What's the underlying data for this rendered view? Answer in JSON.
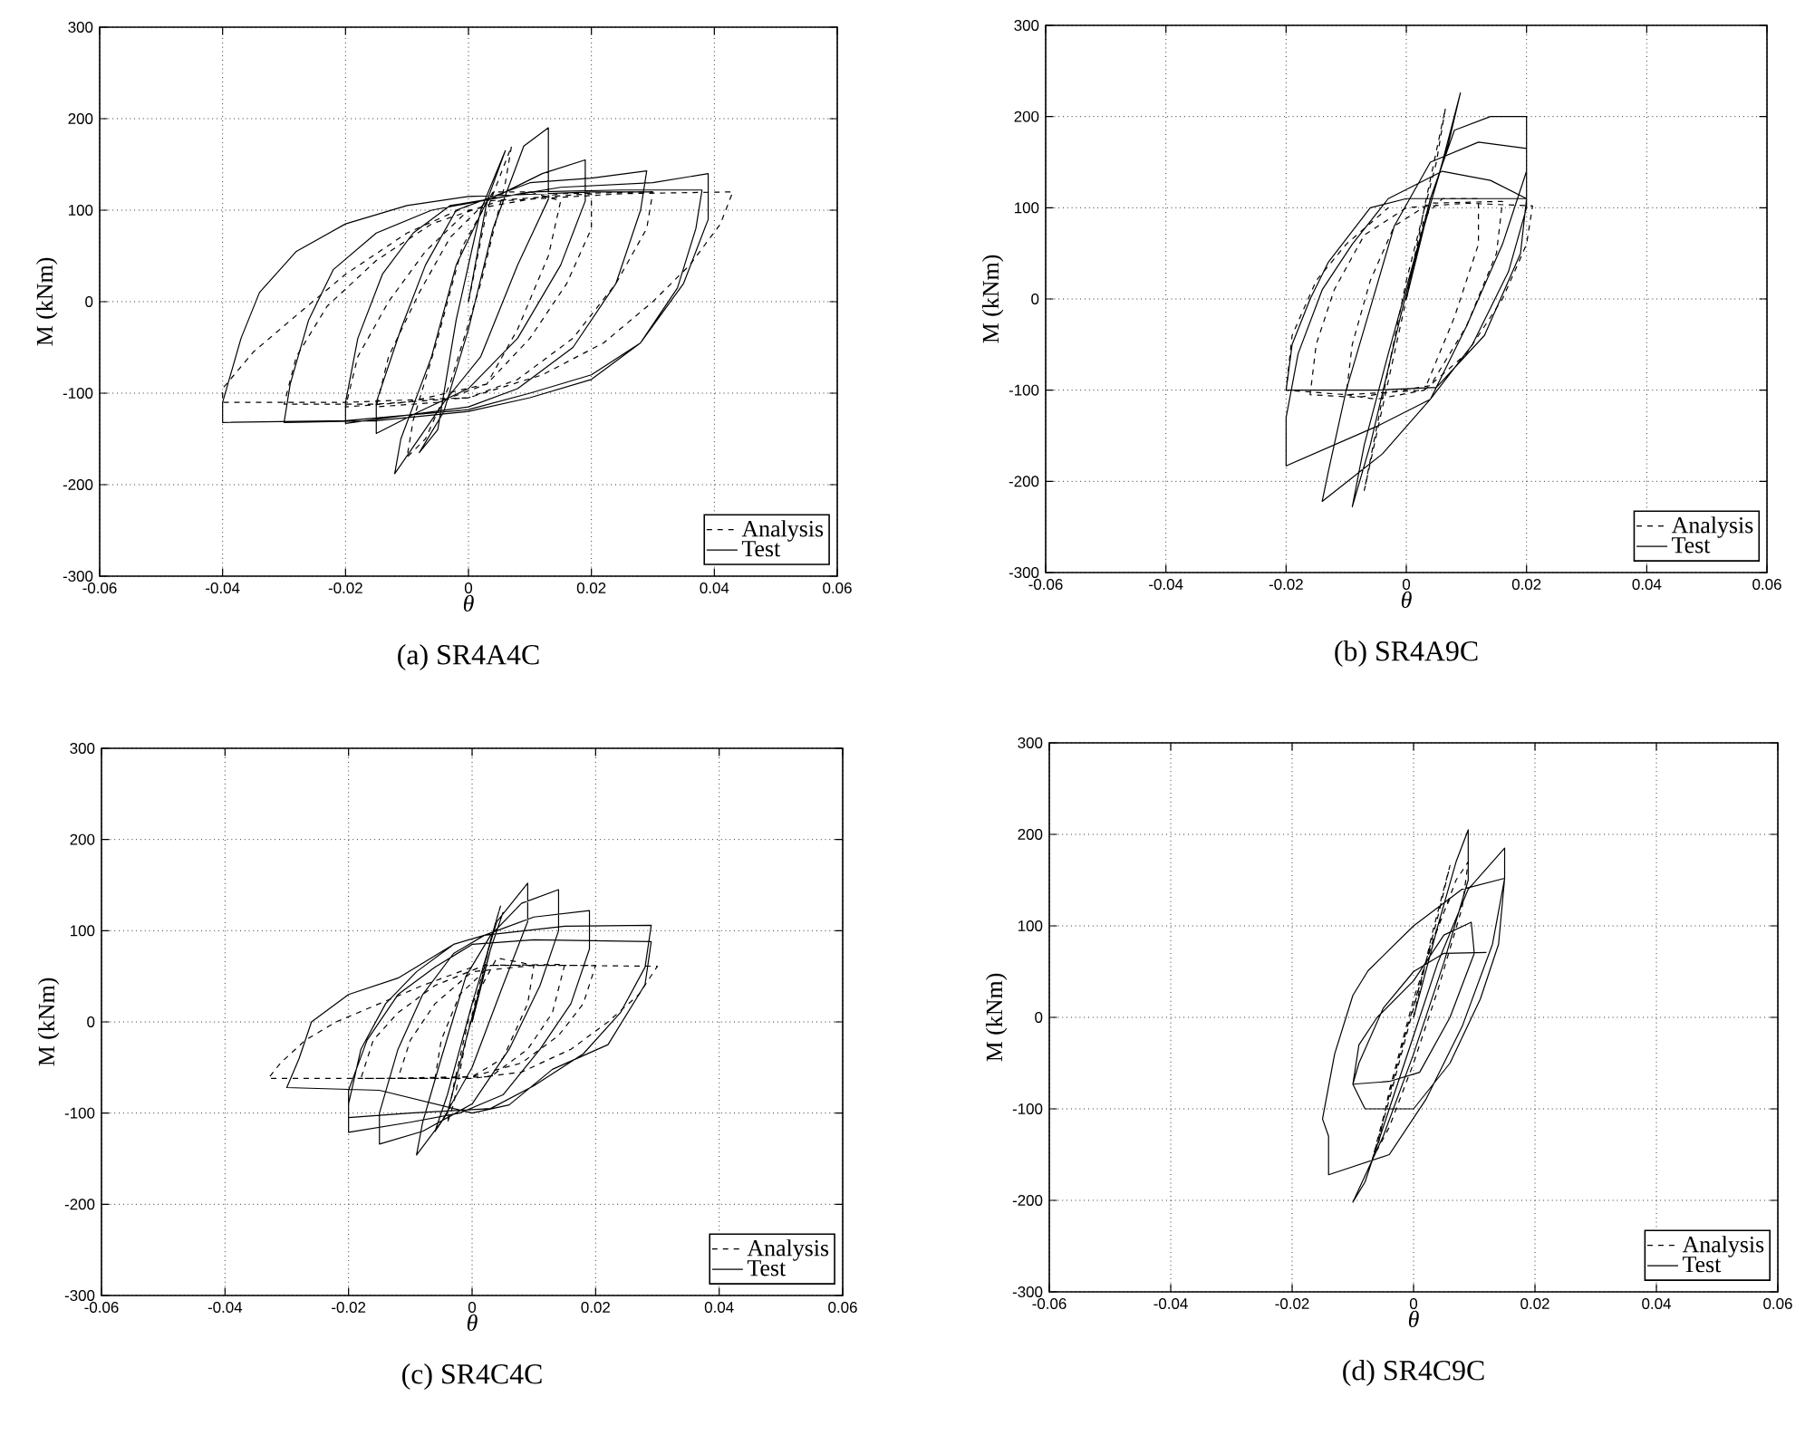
{
  "chart_data": [
    {
      "type": "line",
      "title": "(a) SR4A4C",
      "xlabel": "θ",
      "ylabel": "M (kNm)",
      "xlim": [
        -0.06,
        0.06
      ],
      "ylim": [
        -300,
        300
      ],
      "xticks": [
        -0.06,
        -0.04,
        -0.02,
        0,
        0.02,
        0.04,
        0.06
      ],
      "yticks": [
        -300,
        -200,
        -100,
        0,
        100,
        200,
        300
      ],
      "grid": true,
      "legend": "bottom right",
      "series": [
        {
          "name": "Analysis",
          "color": "#000000",
          "line_style": "dashed",
          "x": [
            0,
            0.003,
            0.007,
            0.006,
            0.002,
            -0.003,
            -0.007,
            -0.01,
            -0.009,
            -0.005,
            -0.001,
            0.004,
            0.01,
            0.015,
            0.013,
            0.008,
            0.003,
            -0.005,
            -0.015,
            -0.013,
            -0.008,
            -0.003,
            0.003,
            0.02,
            0.02,
            0.016,
            0.01,
            0.003,
            -0.01,
            -0.02,
            -0.018,
            -0.013,
            -0.007,
            0,
            0.015,
            0.03,
            0.029,
            0.024,
            0.017,
            0.008,
            0,
            -0.015,
            -0.03,
            -0.028,
            -0.023,
            -0.015,
            -0.006,
            0.005,
            0.025,
            0.043,
            0.041,
            0.036,
            0.03,
            0.022,
            0.012,
            0,
            -0.02,
            -0.04,
            -0.04,
            -0.035,
            -0.028,
            -0.02,
            -0.01,
            0
          ],
          "values": [
            0,
            100,
            170,
            130,
            20,
            -90,
            -150,
            -170,
            -130,
            -40,
            60,
            120,
            120,
            110,
            50,
            -30,
            -90,
            -110,
            -115,
            -60,
            10,
            70,
            110,
            118,
            80,
            20,
            -40,
            -90,
            -110,
            -115,
            -60,
            0,
            55,
            100,
            118,
            120,
            80,
            20,
            -40,
            -85,
            -105,
            -112,
            -112,
            -60,
            -5,
            45,
            85,
            110,
            118,
            120,
            85,
            40,
            0,
            -45,
            -80,
            -105,
            -110,
            -110,
            -95,
            -55,
            -15,
            30,
            75,
            105
          ]
        },
        {
          "name": "Test",
          "color": "#000000",
          "line_style": "solid",
          "x": [
            0,
            0.003,
            0.006,
            0.002,
            -0.002,
            -0.005,
            -0.008,
            -0.004,
            0,
            0.004,
            0.009,
            0.013,
            0.013,
            0.008,
            0.002,
            -0.004,
            -0.012,
            -0.011,
            -0.006,
            -0.002,
            0.003,
            0.012,
            0.019,
            0.019,
            0.015,
            0.008,
            0,
            -0.008,
            -0.015,
            -0.015,
            -0.011,
            -0.007,
            -0.002,
            0.01,
            0.02,
            0.029,
            0.028,
            0.024,
            0.017,
            0.008,
            0,
            -0.02,
            -0.02,
            -0.018,
            -0.014,
            -0.009,
            -0.003,
            0.015,
            0.03,
            0.039,
            0.039,
            0.035,
            0.028,
            0.02,
            0.01,
            0,
            -0.015,
            -0.03,
            -0.029,
            -0.026,
            -0.022,
            -0.015,
            -0.006,
            0.01,
            0.025,
            0.038,
            0.037,
            0.034,
            0.028,
            0.02,
            0.01,
            0,
            -0.02,
            -0.04,
            -0.04,
            -0.037,
            -0.034,
            -0.028,
            -0.02,
            -0.01,
            0,
            0.02,
            0.03
          ],
          "values": [
            0,
            110,
            165,
            100,
            -20,
            -140,
            -165,
            -120,
            -30,
            80,
            170,
            190,
            112,
            40,
            -60,
            -110,
            -188,
            -150,
            -60,
            40,
            110,
            140,
            155,
            110,
            40,
            -40,
            -95,
            -120,
            -144,
            -110,
            -30,
            40,
            100,
            130,
            135,
            143,
            100,
            20,
            -50,
            -95,
            -115,
            -133,
            -110,
            -40,
            30,
            75,
            105,
            125,
            130,
            140,
            90,
            20,
            -45,
            -85,
            -105,
            -120,
            -130,
            -132,
            -90,
            -20,
            35,
            75,
            100,
            120,
            122,
            122,
            80,
            15,
            -45,
            -80,
            -100,
            -118,
            -130,
            -132,
            -110,
            -40,
            10,
            55,
            85,
            105,
            115,
            120,
            120
          ]
        }
      ]
    },
    {
      "type": "line",
      "title": "(b) SR4A9C",
      "xlabel": "θ",
      "ylabel": "M (kNm)",
      "xlim": [
        -0.06,
        0.06
      ],
      "ylim": [
        -300,
        300
      ],
      "xticks": [
        -0.06,
        -0.04,
        -0.02,
        0,
        0.02,
        0.04,
        0.06
      ],
      "yticks": [
        -300,
        -200,
        -100,
        0,
        100,
        200,
        300
      ],
      "grid": true,
      "legend": "bottom right",
      "series": [
        {
          "name": "Analysis",
          "color": "#000000",
          "line_style": "dashed",
          "x": [
            0,
            0.003,
            0.0065,
            0.005,
            0,
            -0.004,
            -0.007,
            -0.005,
            -0.001,
            0.003,
            0.006,
            0.012,
            0.012,
            0.008,
            0.003,
            -0.005,
            -0.01,
            -0.009,
            -0.006,
            -0.002,
            0.004,
            0.016,
            0.015,
            0.01,
            0.004,
            -0.008,
            -0.016,
            -0.015,
            -0.012,
            -0.007,
            0,
            0.01,
            0.021,
            0.02,
            0.016,
            0.01,
            0.003,
            -0.01,
            -0.02,
            -0.019,
            -0.015,
            -0.01,
            -0.003
          ],
          "values": [
            0,
            100,
            209,
            150,
            20,
            -110,
            -210,
            -150,
            -30,
            90,
            110,
            110,
            60,
            -20,
            -100,
            -110,
            -105,
            -50,
            20,
            80,
            105,
            107,
            50,
            -30,
            -95,
            -108,
            -105,
            -50,
            10,
            70,
            100,
            105,
            102,
            60,
            0,
            -60,
            -100,
            -105,
            -100,
            -40,
            20,
            60,
            100
          ]
        },
        {
          "name": "Test",
          "color": "#000000",
          "line_style": "solid",
          "x": [
            0,
            0.003,
            0.006,
            0.009,
            0.007,
            0.002,
            -0.003,
            -0.007,
            -0.009,
            -0.006,
            -0.001,
            0.004,
            0.008,
            0.014,
            0.02,
            0.02,
            0.016,
            0.01,
            0.004,
            -0.004,
            -0.014,
            -0.013,
            -0.01,
            -0.006,
            -0.002,
            0.004,
            0.012,
            0.02,
            0.02,
            0.017,
            0.011,
            0.004,
            -0.005,
            -0.02,
            -0.02,
            -0.018,
            -0.014,
            -0.009,
            -0.003,
            0.006,
            0.014,
            0.02,
            0.019,
            0.013,
            0.005,
            -0.005,
            -0.02,
            -0.019,
            -0.016,
            -0.013,
            -0.006,
            0,
            0.02
          ],
          "values": [
            0,
            80,
            150,
            226,
            170,
            60,
            -60,
            -160,
            -228,
            -160,
            -20,
            110,
            185,
            200,
            200,
            140,
            60,
            -30,
            -110,
            -170,
            -222,
            -190,
            -100,
            -10,
            80,
            150,
            172,
            165,
            100,
            30,
            -50,
            -110,
            -140,
            -183,
            -130,
            -60,
            10,
            60,
            110,
            140,
            130,
            110,
            50,
            -40,
            -97,
            -100,
            -100,
            -50,
            0,
            40,
            100,
            110,
            110
          ]
        }
      ]
    },
    {
      "type": "line",
      "title": "(c) SR4C4C",
      "xlabel": "θ",
      "ylabel": "M (kNm)",
      "xlim": [
        -0.06,
        0.06
      ],
      "ylim": [
        -300,
        300
      ],
      "xticks": [
        -0.06,
        -0.04,
        -0.02,
        0,
        0.02,
        0.04,
        0.06
      ],
      "yticks": [
        -300,
        -200,
        -100,
        0,
        100,
        200,
        300
      ],
      "grid": true,
      "legend": "bottom right",
      "series": [
        {
          "name": "Analysis",
          "color": "#000000",
          "line_style": "dashed",
          "x": [
            0,
            0.003,
            0.0046,
            0.003,
            -0.001,
            -0.003,
            -0.004,
            -0.003,
            0,
            0.004,
            0.008,
            0.01,
            0.009,
            0.005,
            0,
            -0.006,
            -0.005,
            -0.002,
            0.003,
            0.015,
            0.013,
            0.009,
            0.003,
            -0.008,
            -0.012,
            -0.01,
            -0.006,
            0,
            0.01,
            0.02,
            0.018,
            0.014,
            0.008,
            0,
            -0.015,
            -0.018,
            -0.016,
            -0.012,
            -0.006,
            0.002,
            0.015,
            0.03,
            0.027,
            0.022,
            0.016,
            0.008,
            0,
            -0.02,
            -0.033,
            -0.031,
            -0.027,
            -0.022,
            -0.008,
            0
          ],
          "values": [
            0,
            90,
            127,
            90,
            -20,
            -90,
            -111,
            -70,
            20,
            70,
            65,
            62,
            20,
            -40,
            -60,
            -62,
            -20,
            30,
            62,
            63,
            10,
            -30,
            -60,
            -62,
            -62,
            -20,
            20,
            55,
            62,
            62,
            20,
            -15,
            -45,
            -60,
            -62,
            -62,
            -20,
            10,
            40,
            62,
            62,
            61,
            30,
            0,
            -30,
            -55,
            -62,
            -62,
            -62,
            -45,
            -20,
            0,
            40,
            60
          ]
        },
        {
          "name": "Test",
          "color": "#000000",
          "line_style": "solid",
          "x": [
            0,
            0.003,
            0.005,
            0.003,
            -0.001,
            -0.004,
            -0.006,
            -0.004,
            0,
            0.004,
            0.009,
            0.009,
            0.005,
            0,
            -0.005,
            -0.009,
            -0.008,
            -0.005,
            -0.001,
            0.003,
            0.008,
            0.014,
            0.014,
            0.011,
            0.006,
            0,
            -0.008,
            -0.015,
            -0.015,
            -0.012,
            -0.008,
            -0.003,
            0.002,
            0.01,
            0.019,
            0.019,
            0.016,
            0.011,
            0.005,
            -0.002,
            -0.01,
            -0.02,
            -0.02,
            -0.018,
            -0.014,
            -0.009,
            -0.003,
            0.002,
            0.015,
            0.029,
            0.028,
            0.024,
            0.018,
            0.01,
            0.003,
            -0.01,
            -0.02,
            -0.02,
            -0.017,
            -0.012,
            -0.006,
            0,
            0.01,
            0.029,
            0.028,
            0.022,
            0.013,
            0.006,
            0,
            -0.015,
            -0.03,
            -0.028,
            -0.026,
            -0.02,
            -0.012,
            -0.003
          ],
          "values": [
            0,
            80,
            120,
            80,
            -20,
            -100,
            -120,
            -80,
            20,
            110,
            152,
            110,
            40,
            -50,
            -110,
            -146,
            -110,
            -40,
            50,
            95,
            130,
            145,
            100,
            40,
            -30,
            -90,
            -120,
            -134,
            -100,
            -30,
            30,
            75,
            95,
            115,
            122,
            80,
            20,
            -30,
            -80,
            -100,
            -110,
            -121,
            -90,
            -30,
            20,
            55,
            85,
            95,
            105,
            106,
            60,
            10,
            -35,
            -70,
            -95,
            -100,
            -105,
            -75,
            -20,
            30,
            60,
            85,
            90,
            88,
            41,
            -25,
            -52,
            -91,
            -100,
            -75,
            -72,
            -40,
            0,
            30,
            48,
            85
          ]
        }
      ]
    },
    {
      "type": "line",
      "title": "(d) SR4C9C",
      "xlabel": "θ",
      "ylabel": "M (kNm)",
      "xlim": [
        -0.06,
        0.06
      ],
      "ylim": [
        -300,
        300
      ],
      "xticks": [
        -0.06,
        -0.04,
        -0.02,
        0,
        0.02,
        0.04,
        0.06
      ],
      "yticks": [
        -300,
        -200,
        -100,
        0,
        100,
        200,
        300
      ],
      "grid": true,
      "legend": "bottom right",
      "series": [
        {
          "name": "Analysis",
          "color": "#000000",
          "line_style": "dashed",
          "x": [
            0,
            0.003,
            0.006,
            0.004,
            0,
            -0.004,
            -0.007,
            -0.005,
            -0.001,
            0.003,
            0.007,
            0.009,
            0.008,
            0.004,
            0,
            -0.004,
            -0.006,
            -0.004,
            0,
            0.004,
            0.006
          ],
          "values": [
            0,
            90,
            166,
            110,
            10,
            -90,
            -160,
            -110,
            -10,
            80,
            150,
            170,
            120,
            30,
            -50,
            -120,
            -145,
            -80,
            20,
            100,
            130
          ]
        },
        {
          "name": "Test",
          "color": "#000000",
          "line_style": "solid",
          "x": [
            0,
            0.004,
            0.007,
            0.009,
            0.009,
            0.005,
            0,
            -0.005,
            -0.01,
            -0.008,
            -0.004,
            0,
            0.004,
            0.009,
            0.015,
            0.015,
            0.013,
            0.008,
            0.002,
            -0.004,
            -0.014,
            -0.014,
            -0.015,
            -0.013,
            -0.01,
            -0.0075,
            0,
            0.008,
            0.015,
            0.014,
            0.011,
            0.006,
            0,
            -0.008,
            -0.01,
            -0.009,
            -0.006,
            0,
            0.005,
            0.0095,
            0.01,
            0.006,
            0.001,
            -0.004,
            -0.01,
            -0.009,
            -0.005,
            0,
            0.005,
            0.012
          ],
          "values": [
            0,
            100,
            170,
            205,
            150,
            60,
            -40,
            -130,
            -202,
            -180,
            -100,
            -20,
            60,
            140,
            185,
            152,
            80,
            -10,
            -90,
            -150,
            -172,
            -130,
            -111,
            -40,
            24,
            51,
            100,
            140,
            152,
            80,
            20,
            -50,
            -100,
            -100,
            -73,
            -30,
            0,
            40,
            90,
            104,
            70,
            0,
            -60,
            -70,
            -73,
            -50,
            10,
            50,
            70,
            71
          ]
        }
      ]
    }
  ]
}
